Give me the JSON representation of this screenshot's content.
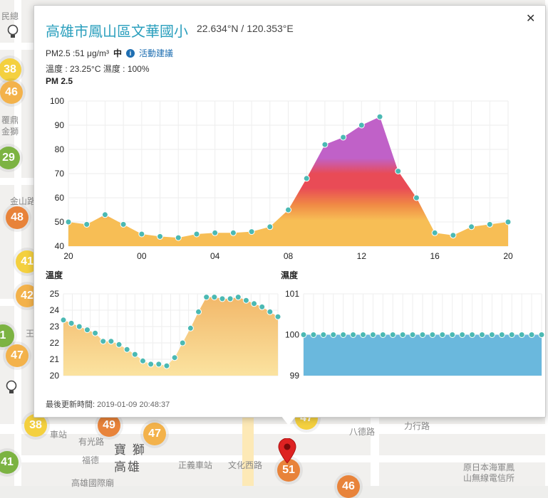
{
  "popup": {
    "title": "高雄市鳳山區文華國小",
    "coords": "22.634°N / 120.353°E",
    "close_icon": "close-icon",
    "pm25_text": "PM2.5 :51 μg/m³",
    "level": "中",
    "activity_link": "活動建議",
    "weather_text": "溫度 : 23.25°C 濕度 : 100%",
    "footer_label": "最後更新時間:",
    "footer_time": "2019-01-09 20:48:37"
  },
  "map": {
    "labels": [
      "寶 獅",
      "高雄",
      "有光路",
      "正義車站",
      "文化西路",
      "八德路",
      "力行路",
      "原日本海軍鳳",
      "山無線電信所",
      "車站",
      "高雄國際廟",
      "福德",
      "金獅",
      "覆鼎",
      "民總",
      "金山路",
      "王"
    ],
    "markers": [
      {
        "value": "38",
        "color": "#f4d03f"
      },
      {
        "value": "46",
        "color": "#f3b24b"
      },
      {
        "value": "29",
        "color": "#7cb342"
      },
      {
        "value": "48",
        "color": "#e8833a"
      },
      {
        "value": "41",
        "color": "#f4d03f"
      },
      {
        "value": "42",
        "color": "#f3b24b"
      },
      {
        "value": "1",
        "color": "#7cb342"
      },
      {
        "value": "47",
        "color": "#f3b24b"
      },
      {
        "value": "38",
        "color": "#f4d03f"
      },
      {
        "value": "49",
        "color": "#e8833a"
      },
      {
        "value": "47",
        "color": "#f3b24b"
      },
      {
        "value": "41",
        "color": "#7cb342"
      },
      {
        "value": "51",
        "color": "#e8833a"
      },
      {
        "value": "46",
        "color": "#e8833a"
      },
      {
        "value": "47",
        "color": "#f4d03f"
      }
    ]
  },
  "chart_data": [
    {
      "type": "area",
      "title": "PM 2.5",
      "x_ticks": [
        "20",
        "00",
        "04",
        "08",
        "12",
        "16",
        "20"
      ],
      "ylim": [
        40,
        100
      ],
      "y_ticks": [
        40,
        50,
        60,
        70,
        80,
        90,
        100
      ],
      "values": [
        50,
        49,
        53,
        49,
        45,
        44,
        43.5,
        45,
        45.5,
        45.5,
        46,
        48,
        55,
        68,
        82,
        85,
        90,
        93.5,
        71,
        60,
        45.5,
        44.5,
        48,
        49,
        50
      ],
      "grid": true
    },
    {
      "type": "area",
      "title": "溫度",
      "ylim": [
        20,
        25
      ],
      "y_ticks": [
        20,
        21,
        22,
        23,
        24,
        25
      ],
      "values": [
        23.4,
        23.2,
        23.0,
        22.8,
        22.6,
        22.1,
        22.1,
        21.9,
        21.6,
        21.3,
        20.9,
        20.7,
        20.7,
        20.6,
        21.1,
        22.0,
        22.9,
        23.9,
        24.8,
        24.8,
        24.7,
        24.7,
        24.8,
        24.6,
        24.4,
        24.2,
        23.9,
        23.6
      ],
      "grid": true
    },
    {
      "type": "area",
      "title": "濕度",
      "ylim": [
        99,
        101
      ],
      "y_ticks": [
        99,
        100,
        101
      ],
      "values": [
        100,
        100,
        100,
        100,
        100,
        100,
        100,
        100,
        100,
        100,
        100,
        100,
        100,
        100,
        100,
        100,
        100,
        100,
        100,
        100,
        100,
        100,
        100,
        100,
        100
      ],
      "grid": true
    }
  ],
  "colors": {
    "title": "#2a9fbd",
    "point": "#4bb9b3",
    "pm_yellow": "#f7be55",
    "pm_orange": "#f08a45",
    "pm_red": "#e94b56",
    "pm_purple": "#c061c8",
    "humidity": "#6ab8dd"
  }
}
